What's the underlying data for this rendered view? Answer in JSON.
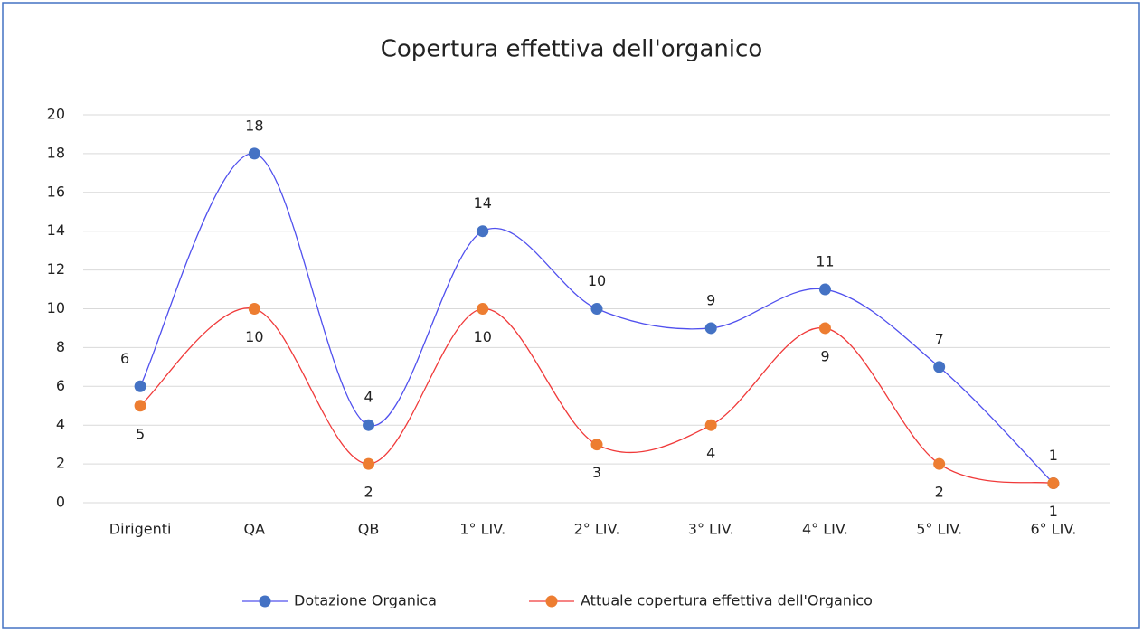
{
  "chart_data": {
    "type": "line",
    "title": "Copertura  effettiva dell'organico",
    "categories": [
      "Dirigenti",
      "QA",
      "QB",
      "1° LIV.",
      "2° LIV.",
      "3° LIV.",
      "4° LIV.",
      "5° LIV.",
      "6° LIV."
    ],
    "series": [
      {
        "name": "Dotazione Organica",
        "color": "#4472c4",
        "line_color": "#5050ee",
        "values": [
          6,
          18,
          4,
          14,
          10,
          9,
          11,
          7,
          1
        ]
      },
      {
        "name": "Attuale copertura effettiva dell'Organico",
        "color": "#ed7d31",
        "line_color": "#f03a3a",
        "values": [
          5,
          10,
          2,
          10,
          3,
          4,
          9,
          2,
          1
        ]
      }
    ],
    "ylim": [
      0,
      20
    ],
    "yticks": [
      0,
      2,
      4,
      6,
      8,
      10,
      12,
      14,
      16,
      18,
      20
    ],
    "grid": true,
    "smooth": true,
    "legend": "bottom"
  }
}
